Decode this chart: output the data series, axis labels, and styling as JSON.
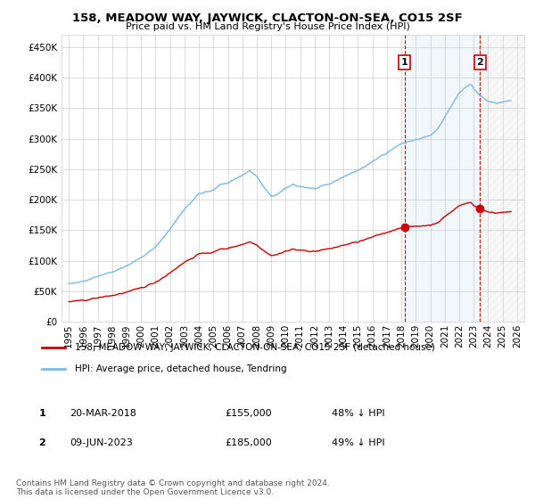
{
  "title": "158, MEADOW WAY, JAYWICK, CLACTON-ON-SEA, CO15 2SF",
  "subtitle": "Price paid vs. HM Land Registry's House Price Index (HPI)",
  "legend_line1": "158, MEADOW WAY, JAYWICK, CLACTON-ON-SEA, CO15 2SF (detached house)",
  "legend_line2": "HPI: Average price, detached house, Tendring",
  "annotation1_label": "1",
  "annotation1_date": "20-MAR-2018",
  "annotation1_price": "£155,000",
  "annotation1_hpi": "48% ↓ HPI",
  "annotation2_label": "2",
  "annotation2_date": "09-JUN-2023",
  "annotation2_price": "£185,000",
  "annotation2_hpi": "49% ↓ HPI",
  "footer": "Contains HM Land Registry data © Crown copyright and database right 2024.\nThis data is licensed under the Open Government Licence v3.0.",
  "sale1_year": 2018.21,
  "sale1_price": 155000,
  "sale2_year": 2023.44,
  "sale2_price": 185000,
  "hpi_color": "#7ab8e8",
  "price_color": "#cc0000",
  "vline_color": "#cc0000",
  "shade_color": "#ddeeff",
  "background_color": "#ffffff",
  "grid_color": "#cccccc",
  "ylim": [
    0,
    470000
  ],
  "xlim_start": 1994.5,
  "xlim_end": 2026.5
}
